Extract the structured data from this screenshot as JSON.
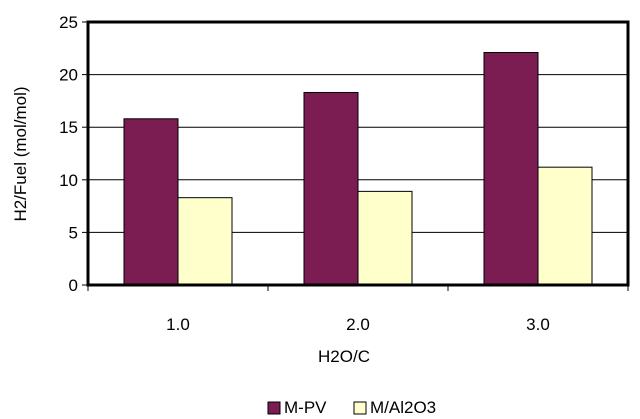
{
  "chart_data": {
    "type": "bar",
    "categories": [
      "1.0",
      "2.0",
      "3.0"
    ],
    "series": [
      {
        "name": "M-PV",
        "values": [
          15.8,
          18.3,
          22.1
        ],
        "color": "#7b1c52"
      },
      {
        "name": "M/Al2O3",
        "values": [
          8.3,
          8.9,
          11.2
        ],
        "color": "#ffffcc"
      }
    ],
    "title": "",
    "xlabel": "H2O/C",
    "ylabel": "H2/Fuel (mol/mol)",
    "ylim": [
      0,
      25
    ],
    "yticks": [
      "0",
      "5",
      "10",
      "15",
      "20",
      "25"
    ],
    "grid": true,
    "legend": "bottom"
  }
}
